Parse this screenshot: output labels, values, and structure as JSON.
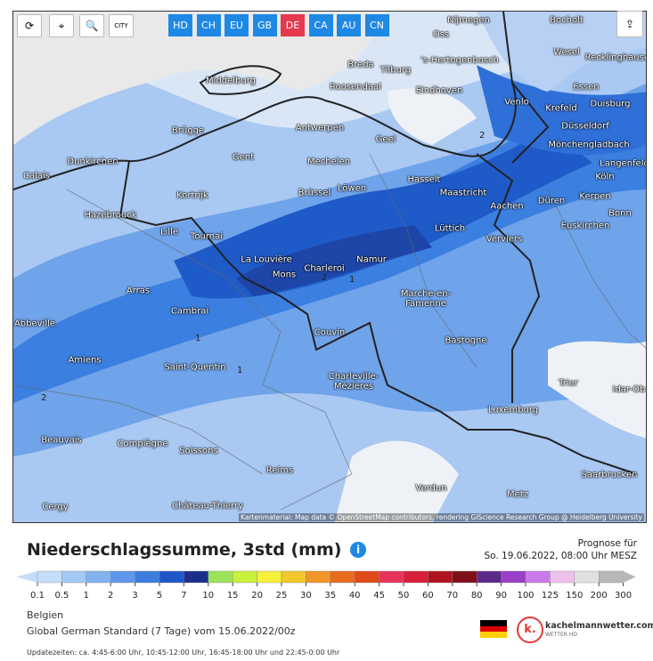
{
  "toolbar": {
    "city": "CITY",
    "regions": [
      "HD",
      "CH",
      "EU",
      "GB",
      "DE",
      "CA",
      "AU",
      "CN"
    ],
    "active_region": "DE"
  },
  "map": {
    "cities": [
      "Nijmegen",
      "Bocholt",
      "Oss",
      "Wesel",
      "'s-Hertogenbosch",
      "Recklinghausen",
      "Breda",
      "Tilburg",
      "Middelburg",
      "Roosendaal",
      "Eindhoven",
      "Essen",
      "Venlo",
      "Duisburg",
      "Krefeld",
      "Antwerpen",
      "Düsseldorf",
      "Brügge",
      "Geel",
      "Mönchengladbach",
      "Gent",
      "Mechelen",
      "Dunkirchen",
      "Langenfeld",
      "Calais",
      "Hasselt",
      "Köln",
      "Kortrijk",
      "Brüssel",
      "Löwen",
      "Maastricht",
      "Düren",
      "Kerpen",
      "Aachen",
      "Bonn",
      "Hazebrouck",
      "Euskirchen",
      "Lille",
      "Tournai",
      "Lüttich",
      "Verviers",
      "La Louvière",
      "Namur",
      "Charleroi",
      "Mons",
      "Arras",
      "Marche-en-Famenne",
      "Cambrai",
      "Abbeville",
      "Couvin",
      "Bastogne",
      "Amiens",
      "Saint-Quentin",
      "Charleville-Mézières",
      "Trier",
      "Idar-Ob",
      "Luxemburg",
      "Beauvais",
      "Compiègne",
      "Soissons",
      "Reims",
      "Saarbrucken",
      "Verdun",
      "Metz",
      "Château-Thierry",
      "Cergy"
    ],
    "contour_labels": [
      "2",
      "2",
      "1",
      "1",
      "1",
      "2"
    ],
    "attribution": "Kartenmaterial: Map data © OpenStreetMap contributors, rendering GIScience Research Group @ Heidelberg University"
  },
  "header": {
    "title": "Niederschlagssumme, 3std (mm)",
    "info": "i",
    "forecast_label": "Prognose für",
    "forecast_time": "So. 19.06.2022, 08:00 Uhr MESZ"
  },
  "legend": {
    "ticks": [
      0.1,
      0.5,
      1,
      2,
      3,
      5,
      7,
      10,
      15,
      20,
      25,
      30,
      35,
      40,
      45,
      50,
      60,
      70,
      80,
      90,
      100,
      125,
      150,
      200,
      300
    ],
    "colors": [
      "#c5ddf8",
      "#a3c9f5",
      "#82b3f0",
      "#5f98ea",
      "#3d7de0",
      "#1d57c8",
      "#1b2f8a",
      "#9be35a",
      "#c8f03c",
      "#f5f03a",
      "#f2c72c",
      "#f0962a",
      "#e86b1e",
      "#e04a1a",
      "#e8345a",
      "#d8203a",
      "#b01420",
      "#801018",
      "#5c2a8a",
      "#9a3fc8",
      "#c97ae8",
      "#eec1ec",
      "#e0e0e0",
      "#b8b8b8"
    ]
  },
  "footer": {
    "region": "Belgien",
    "model": "Global German Standard (7 Tage) vom 15.06.2022/00z",
    "updates": "Updatezeiten: ca. 4:45-6:00 Uhr, 10:45-12:00 Uhr, 16:45-18:00 Uhr und 22:45-0:00 Uhr",
    "logo_mark": "k.",
    "logo_name": "kachelmannwetter.com",
    "logo_sub": "WETTER HD"
  }
}
